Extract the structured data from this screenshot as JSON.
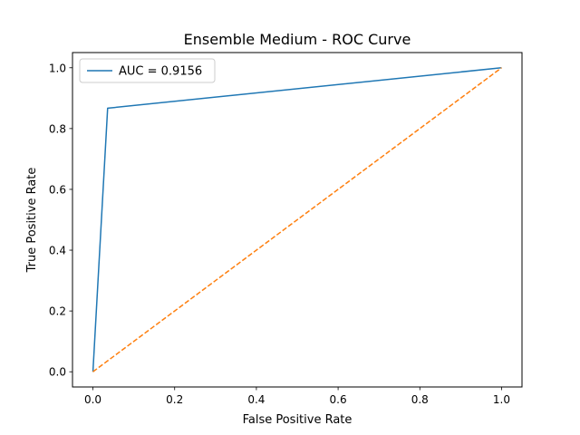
{
  "chart_data": {
    "type": "line",
    "title": "Ensemble Medium - ROC Curve",
    "xlabel": "False Positive Rate",
    "ylabel": "True Positive Rate",
    "xlim": [
      -0.05,
      1.05
    ],
    "ylim": [
      -0.05,
      1.05
    ],
    "xticks": [
      "0.0",
      "0.2",
      "0.4",
      "0.6",
      "0.8",
      "1.0"
    ],
    "yticks": [
      "0.0",
      "0.2",
      "0.4",
      "0.6",
      "0.8",
      "1.0"
    ],
    "grid": false,
    "legend_position": "top-left",
    "series": [
      {
        "name": "AUC = 0.9156",
        "color": "#1f77b4",
        "style": "solid",
        "points": [
          [
            0.0,
            0.0
          ],
          [
            0.036,
            0.867
          ],
          [
            1.0,
            1.0
          ]
        ]
      },
      {
        "color": "#ff7f0e",
        "style": "dashed",
        "points": [
          [
            0.0,
            0.0
          ],
          [
            1.0,
            1.0
          ]
        ]
      }
    ]
  }
}
